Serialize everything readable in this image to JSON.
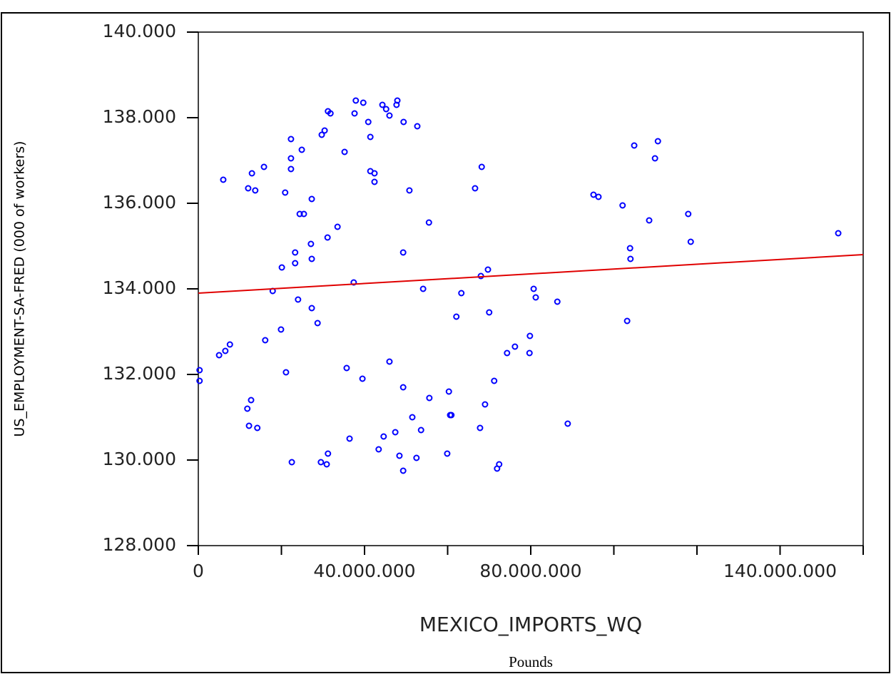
{
  "chart_data": {
    "type": "scatter",
    "x_label": "MEXICO_IMPORTS_WQ",
    "x_unit": "Pounds",
    "y_label": "US_EMPLOYMENT-SA-FRED (000 of workers)",
    "color": "#0000ff",
    "xlim": [
      0,
      160000000
    ],
    "ylim": [
      128000,
      140000
    ],
    "xticks": [
      0,
      {
        "value": 40000000,
        "label": "40.000.000"
      },
      {
        "value": 80000000,
        "label": "80.000.000"
      },
      {
        "value": 140000000,
        "label": "140.000.000"
      }
    ],
    "x_minor_ticks": [
      20000000,
      60000000,
      100000000,
      120000000,
      160000000
    ],
    "yticks": [
      {
        "value": 128000,
        "label": "128.000"
      },
      {
        "value": 130000,
        "label": "130.000"
      },
      {
        "value": 132000,
        "label": "132.000"
      },
      {
        "value": 134000,
        "label": "134.000"
      },
      {
        "value": 136000,
        "label": "136.000"
      },
      {
        "value": 138000,
        "label": "138.000"
      },
      {
        "value": 140000,
        "label": "140.000"
      }
    ],
    "x": [
      6000000,
      12900000,
      15800000,
      12000000,
      13700000,
      20900000,
      22300000,
      22300000,
      22300000,
      24900000,
      25400000,
      27300000,
      29700000,
      30400000,
      31800000,
      31200000,
      35200000,
      37600000,
      37900000,
      39700000,
      40900000,
      41400000,
      41400000,
      42400000,
      42400000,
      44300000,
      45200000,
      46000000,
      47900000,
      47700000,
      49400000,
      52700000,
      50800000,
      55500000,
      33500000,
      31100000,
      27100000,
      27300000,
      20100000,
      23300000,
      23300000,
      37400000,
      17900000,
      24000000,
      27300000,
      28700000,
      19900000,
      16100000,
      7600000,
      6500000,
      5000000,
      300000,
      300000,
      21100000,
      35700000,
      39500000,
      46000000,
      49300000,
      55600000,
      12700000,
      11800000,
      12200000,
      14200000,
      22500000,
      29500000,
      30900000,
      31200000,
      36400000,
      43400000,
      44600000,
      47400000,
      48400000,
      49300000,
      52500000,
      51500000,
      53600000,
      60300000,
      60600000,
      60900000,
      59900000,
      62100000,
      63300000,
      54100000,
      49300000,
      70000000,
      69000000,
      67800000,
      71200000,
      71900000,
      72400000,
      74300000,
      76200000,
      79800000,
      79700000,
      80700000,
      81200000,
      86400000,
      88900000,
      95100000,
      96300000,
      66600000,
      68200000,
      68000000,
      69700000,
      102100000,
      103200000,
      103900000,
      104000000,
      104900000,
      108500000,
      109900000,
      110600000,
      117900000,
      118500000,
      154000000,
      24400000
    ],
    "values": [
      136550,
      136700,
      136850,
      136350,
      136300,
      136250,
      136800,
      137050,
      137500,
      137250,
      135750,
      136100,
      137600,
      137700,
      138100,
      138150,
      137200,
      138100,
      138400,
      138350,
      137900,
      137550,
      136750,
      136700,
      136500,
      138300,
      138200,
      138050,
      138400,
      138300,
      137900,
      137800,
      136300,
      135550,
      135450,
      135200,
      135050,
      134700,
      134500,
      134850,
      134600,
      134150,
      133950,
      133750,
      133550,
      133200,
      133050,
      132800,
      132700,
      132550,
      132450,
      132100,
      131850,
      132050,
      132150,
      131900,
      132300,
      131700,
      131450,
      131400,
      131200,
      130800,
      130750,
      129950,
      129950,
      129900,
      130150,
      130500,
      130250,
      130550,
      130650,
      130100,
      129750,
      130050,
      131000,
      130700,
      131600,
      131050,
      131050,
      130150,
      133350,
      133900,
      134000,
      134850,
      133450,
      131300,
      130750,
      131850,
      129800,
      129900,
      132500,
      132650,
      132900,
      132500,
      134000,
      133800,
      133700,
      130850,
      136200,
      136150,
      136350,
      136850,
      134300,
      134450,
      135950,
      133250,
      134950,
      134700,
      137350,
      135600,
      137050,
      137450,
      135750,
      135100,
      135300,
      135750
    ],
    "trend_line": {
      "color": "#e00000",
      "x": [
        0,
        160000000
      ],
      "values": [
        133900,
        134800
      ]
    }
  }
}
